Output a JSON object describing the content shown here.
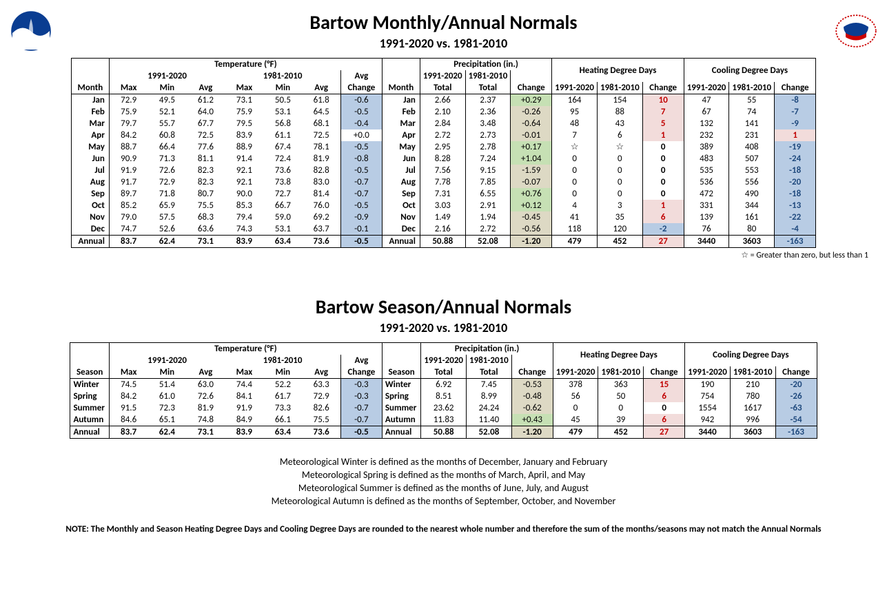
{
  "colors": {
    "blue": "#b8cce4",
    "white": "#ffffff",
    "green": "#c6e0b4",
    "tan": "#ddd9c4",
    "pink": "#f2dcdb",
    "red_text": "#c00000",
    "blue_text": "#1f497d"
  },
  "title1": "Bartow Monthly/Annual Normals",
  "title2": "Bartow Season/Annual Normals",
  "subtitle": "1991-2020 vs. 1981-2010",
  "group_headers": {
    "temp": "Temperature (°F)",
    "precip": "Precipitation (in.)",
    "hdd": "Heating Degree Days",
    "cdd": "Cooling Degree Days",
    "avg_change": "Avg",
    "change_sub": "Change",
    "p1": "1991-2020",
    "p2": "1981-2010",
    "month": "Month",
    "season": "Season",
    "max": "Max",
    "min": "Min",
    "avg": "Avg",
    "total": "Total",
    "change": "Change"
  },
  "footnote_star": "☆ = Greater than zero, but less than 1",
  "defs": [
    "Meteorological Winter is defined as the months of December, January and February",
    "Meteorological Spring is defined as the months of March, April, and May",
    "Meteorological Summer is defined as the months of June, July, and August",
    "Meteorological Autumn is defined as the months of September, October, and November"
  ],
  "note": "NOTE:  The Monthly and Season Heating Degree Days and Cooling Degree Days are rounded to the nearest whole number and therefore the sum of the months/seasons may not match the Annual Normals",
  "monthly": [
    {
      "label": "Jan",
      "t": [
        "72.9",
        "49.5",
        "61.2",
        "73.1",
        "50.5",
        "61.8"
      ],
      "tchg": "-0.6",
      "tchg_bg": "blue",
      "p": [
        "2.66",
        "2.37"
      ],
      "pchg": "+0.29",
      "pchg_bg": "green",
      "hdd": [
        "164",
        "154"
      ],
      "hddchg": "10",
      "hddchg_bg": "pink",
      "hddchg_fg": "red",
      "cdd": [
        "47",
        "55"
      ],
      "cddchg": "-8",
      "cddchg_bg": "blue",
      "cddchg_fg": "blue"
    },
    {
      "label": "Feb",
      "t": [
        "75.9",
        "52.1",
        "64.0",
        "75.9",
        "53.1",
        "64.5"
      ],
      "tchg": "-0.5",
      "tchg_bg": "blue",
      "p": [
        "2.10",
        "2.36"
      ],
      "pchg": "-0.26",
      "pchg_bg": "tan",
      "hdd": [
        "95",
        "88"
      ],
      "hddchg": "7",
      "hddchg_bg": "pink",
      "hddchg_fg": "red",
      "cdd": [
        "67",
        "74"
      ],
      "cddchg": "-7",
      "cddchg_bg": "blue",
      "cddchg_fg": "blue"
    },
    {
      "label": "Mar",
      "t": [
        "79.7",
        "55.7",
        "67.7",
        "79.5",
        "56.8",
        "68.1"
      ],
      "tchg": "-0.4",
      "tchg_bg": "blue",
      "p": [
        "2.84",
        "3.48"
      ],
      "pchg": "-0.64",
      "pchg_bg": "tan",
      "hdd": [
        "48",
        "43"
      ],
      "hddchg": "5",
      "hddchg_bg": "pink",
      "hddchg_fg": "red",
      "cdd": [
        "132",
        "141"
      ],
      "cddchg": "-9",
      "cddchg_bg": "blue",
      "cddchg_fg": "blue"
    },
    {
      "label": "Apr",
      "t": [
        "84.2",
        "60.8",
        "72.5",
        "83.9",
        "61.1",
        "72.5"
      ],
      "tchg": "+0.0",
      "tchg_bg": "white",
      "p": [
        "2.72",
        "2.73"
      ],
      "pchg": "-0.01",
      "pchg_bg": "tan",
      "hdd": [
        "7",
        "6"
      ],
      "hddchg": "1",
      "hddchg_bg": "pink",
      "hddchg_fg": "red",
      "cdd": [
        "232",
        "231"
      ],
      "cddchg": "1",
      "cddchg_bg": "pink",
      "cddchg_fg": "red"
    },
    {
      "label": "May",
      "t": [
        "88.7",
        "66.4",
        "77.6",
        "88.9",
        "67.4",
        "78.1"
      ],
      "tchg": "-0.5",
      "tchg_bg": "blue",
      "p": [
        "2.95",
        "2.78"
      ],
      "pchg": "+0.17",
      "pchg_bg": "green",
      "hdd": [
        "☆",
        "☆"
      ],
      "hddchg": "0",
      "hddchg_bg": "white",
      "hddchg_fg": "black",
      "cdd": [
        "389",
        "408"
      ],
      "cddchg": "-19",
      "cddchg_bg": "blue",
      "cddchg_fg": "blue"
    },
    {
      "label": "Jun",
      "t": [
        "90.9",
        "71.3",
        "81.1",
        "91.4",
        "72.4",
        "81.9"
      ],
      "tchg": "-0.8",
      "tchg_bg": "blue",
      "p": [
        "8.28",
        "7.24"
      ],
      "pchg": "+1.04",
      "pchg_bg": "green",
      "hdd": [
        "0",
        "0"
      ],
      "hddchg": "0",
      "hddchg_bg": "white",
      "hddchg_fg": "black",
      "cdd": [
        "483",
        "507"
      ],
      "cddchg": "-24",
      "cddchg_bg": "blue",
      "cddchg_fg": "blue"
    },
    {
      "label": "Jul",
      "t": [
        "91.9",
        "72.6",
        "82.3",
        "92.1",
        "73.6",
        "82.8"
      ],
      "tchg": "-0.5",
      "tchg_bg": "blue",
      "p": [
        "7.56",
        "9.15"
      ],
      "pchg": "-1.59",
      "pchg_bg": "tan",
      "hdd": [
        "0",
        "0"
      ],
      "hddchg": "0",
      "hddchg_bg": "white",
      "hddchg_fg": "black",
      "cdd": [
        "535",
        "553"
      ],
      "cddchg": "-18",
      "cddchg_bg": "blue",
      "cddchg_fg": "blue"
    },
    {
      "label": "Aug",
      "t": [
        "91.7",
        "72.9",
        "82.3",
        "92.1",
        "73.8",
        "83.0"
      ],
      "tchg": "-0.7",
      "tchg_bg": "blue",
      "p": [
        "7.78",
        "7.85"
      ],
      "pchg": "-0.07",
      "pchg_bg": "tan",
      "hdd": [
        "0",
        "0"
      ],
      "hddchg": "0",
      "hddchg_bg": "white",
      "hddchg_fg": "black",
      "cdd": [
        "536",
        "556"
      ],
      "cddchg": "-20",
      "cddchg_bg": "blue",
      "cddchg_fg": "blue"
    },
    {
      "label": "Sep",
      "t": [
        "89.7",
        "71.8",
        "80.7",
        "90.0",
        "72.7",
        "81.4"
      ],
      "tchg": "-0.7",
      "tchg_bg": "blue",
      "p": [
        "7.31",
        "6.55"
      ],
      "pchg": "+0.76",
      "pchg_bg": "green",
      "hdd": [
        "0",
        "0"
      ],
      "hddchg": "0",
      "hddchg_bg": "white",
      "hddchg_fg": "black",
      "cdd": [
        "472",
        "490"
      ],
      "cddchg": "-18",
      "cddchg_bg": "blue",
      "cddchg_fg": "blue"
    },
    {
      "label": "Oct",
      "t": [
        "85.2",
        "65.9",
        "75.5",
        "85.3",
        "66.7",
        "76.0"
      ],
      "tchg": "-0.5",
      "tchg_bg": "blue",
      "p": [
        "3.03",
        "2.91"
      ],
      "pchg": "+0.12",
      "pchg_bg": "green",
      "hdd": [
        "4",
        "3"
      ],
      "hddchg": "1",
      "hddchg_bg": "pink",
      "hddchg_fg": "red",
      "cdd": [
        "331",
        "344"
      ],
      "cddchg": "-13",
      "cddchg_bg": "blue",
      "cddchg_fg": "blue"
    },
    {
      "label": "Nov",
      "t": [
        "79.0",
        "57.5",
        "68.3",
        "79.4",
        "59.0",
        "69.2"
      ],
      "tchg": "-0.9",
      "tchg_bg": "blue",
      "p": [
        "1.49",
        "1.94"
      ],
      "pchg": "-0.45",
      "pchg_bg": "tan",
      "hdd": [
        "41",
        "35"
      ],
      "hddchg": "6",
      "hddchg_bg": "pink",
      "hddchg_fg": "red",
      "cdd": [
        "139",
        "161"
      ],
      "cddchg": "-22",
      "cddchg_bg": "blue",
      "cddchg_fg": "blue"
    },
    {
      "label": "Dec",
      "t": [
        "74.7",
        "52.6",
        "63.6",
        "74.3",
        "53.1",
        "63.7"
      ],
      "tchg": "-0.1",
      "tchg_bg": "blue",
      "p": [
        "2.16",
        "2.72"
      ],
      "pchg": "-0.56",
      "pchg_bg": "tan",
      "hdd": [
        "118",
        "120"
      ],
      "hddchg": "-2",
      "hddchg_bg": "blue",
      "hddchg_fg": "blue",
      "cdd": [
        "76",
        "80"
      ],
      "cddchg": "-4",
      "cddchg_bg": "blue",
      "cddchg_fg": "blue"
    }
  ],
  "monthly_annual": {
    "label": "Annual",
    "t": [
      "83.7",
      "62.4",
      "73.1",
      "83.9",
      "63.4",
      "73.6"
    ],
    "tchg": "-0.5",
    "tchg_bg": "blue",
    "p": [
      "50.88",
      "52.08"
    ],
    "pchg": "-1.20",
    "pchg_bg": "tan",
    "hdd": [
      "479",
      "452"
    ],
    "hddchg": "27",
    "hddchg_bg": "pink",
    "hddchg_fg": "red",
    "cdd": [
      "3440",
      "3603"
    ],
    "cddchg": "-163",
    "cddchg_bg": "blue",
    "cddchg_fg": "blue"
  },
  "seasonal": [
    {
      "label": "Winter",
      "t": [
        "74.5",
        "51.4",
        "63.0",
        "74.4",
        "52.2",
        "63.3"
      ],
      "tchg": "-0.3",
      "tchg_bg": "blue",
      "p": [
        "6.92",
        "7.45"
      ],
      "pchg": "-0.53",
      "pchg_bg": "tan",
      "hdd": [
        "378",
        "363"
      ],
      "hddchg": "15",
      "hddchg_bg": "pink",
      "hddchg_fg": "red",
      "cdd": [
        "190",
        "210"
      ],
      "cddchg": "-20",
      "cddchg_bg": "blue",
      "cddchg_fg": "blue"
    },
    {
      "label": "Spring",
      "t": [
        "84.2",
        "61.0",
        "72.6",
        "84.1",
        "61.7",
        "72.9"
      ],
      "tchg": "-0.3",
      "tchg_bg": "blue",
      "p": [
        "8.51",
        "8.99"
      ],
      "pchg": "-0.48",
      "pchg_bg": "tan",
      "hdd": [
        "56",
        "50"
      ],
      "hddchg": "6",
      "hddchg_bg": "pink",
      "hddchg_fg": "red",
      "cdd": [
        "754",
        "780"
      ],
      "cddchg": "-26",
      "cddchg_bg": "blue",
      "cddchg_fg": "blue"
    },
    {
      "label": "Summer",
      "t": [
        "91.5",
        "72.3",
        "81.9",
        "91.9",
        "73.3",
        "82.6"
      ],
      "tchg": "-0.7",
      "tchg_bg": "blue",
      "p": [
        "23.62",
        "24.24"
      ],
      "pchg": "-0.62",
      "pchg_bg": "tan",
      "hdd": [
        "0",
        "0"
      ],
      "hddchg": "0",
      "hddchg_bg": "white",
      "hddchg_fg": "black",
      "cdd": [
        "1554",
        "1617"
      ],
      "cddchg": "-63",
      "cddchg_bg": "blue",
      "cddchg_fg": "blue"
    },
    {
      "label": "Autumn",
      "t": [
        "84.6",
        "65.1",
        "74.8",
        "84.9",
        "66.1",
        "75.5"
      ],
      "tchg": "-0.7",
      "tchg_bg": "blue",
      "p": [
        "11.83",
        "11.40"
      ],
      "pchg": "+0.43",
      "pchg_bg": "green",
      "hdd": [
        "45",
        "39"
      ],
      "hddchg": "6",
      "hddchg_bg": "pink",
      "hddchg_fg": "red",
      "cdd": [
        "942",
        "996"
      ],
      "cddchg": "-54",
      "cddchg_bg": "blue",
      "cddchg_fg": "blue"
    }
  ],
  "seasonal_annual": {
    "label": "Annual",
    "t": [
      "83.7",
      "62.4",
      "73.1",
      "83.9",
      "63.4",
      "73.6"
    ],
    "tchg": "-0.5",
    "tchg_bg": "blue",
    "p": [
      "50.88",
      "52.08"
    ],
    "pchg": "-1.20",
    "pchg_bg": "tan",
    "hdd": [
      "479",
      "452"
    ],
    "hddchg": "27",
    "hddchg_bg": "pink",
    "hddchg_fg": "red",
    "cdd": [
      "3440",
      "3603"
    ],
    "cddchg": "-163",
    "cddchg_bg": "blue",
    "cddchg_fg": "blue"
  }
}
